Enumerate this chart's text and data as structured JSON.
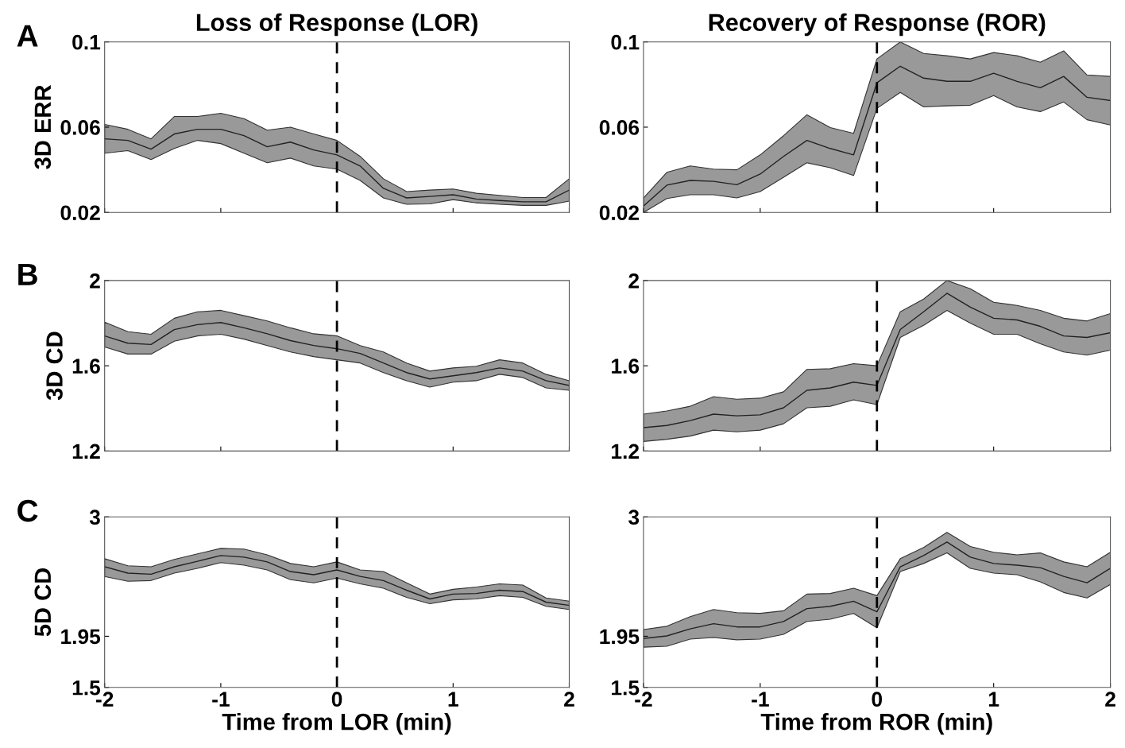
{
  "chart_data": [
    {
      "type": "line",
      "title": "Loss of Response (LOR)",
      "ylabel": "3D ERR",
      "annotations": [
        "A"
      ],
      "tick_labels": "y",
      "grid": false,
      "line_style": "solid",
      "x": [
        -2,
        -1.8,
        -1.6,
        -1.4,
        -1.2,
        -1,
        -0.8,
        -0.6,
        -0.4,
        -0.2,
        0,
        0.2,
        0.4,
        0.6,
        0.8,
        1,
        1.2,
        1.4,
        1.6,
        1.8,
        2
      ],
      "xlim": [
        -2,
        2
      ],
      "xticks": [
        -2,
        -1,
        0,
        1,
        2
      ],
      "ylim": [
        0.02,
        0.1
      ],
      "yticks": [
        0.02,
        0.06,
        0.1
      ],
      "ref_lines": [
        {
          "axis": "x",
          "value": 0,
          "color": "#000000",
          "line_style": "dashed"
        }
      ],
      "series": [
        {
          "color": "#222222",
          "values": [
            0.0545,
            0.0538,
            0.0497,
            0.0568,
            0.059,
            0.059,
            0.056,
            0.0508,
            0.053,
            0.0493,
            0.047,
            0.0418,
            0.0313,
            0.0268,
            0.0275,
            0.0283,
            0.0263,
            0.0256,
            0.025,
            0.025,
            0.0305
          ],
          "lower": [
            0.0478,
            0.049,
            0.0448,
            0.05,
            0.0538,
            0.0523,
            0.0478,
            0.0433,
            0.0455,
            0.0418,
            0.0403,
            0.035,
            0.0268,
            0.0238,
            0.024,
            0.026,
            0.0245,
            0.0238,
            0.0233,
            0.0233,
            0.0253
          ],
          "upper": [
            0.0613,
            0.059,
            0.0545,
            0.065,
            0.065,
            0.0665,
            0.064,
            0.0586,
            0.06,
            0.0568,
            0.0538,
            0.0463,
            0.0358,
            0.0298,
            0.0305,
            0.031,
            0.029,
            0.028,
            0.027,
            0.027,
            0.0358
          ]
        }
      ]
    },
    {
      "type": "line",
      "title": "Recovery of Response (ROR)",
      "tick_labels": "y",
      "grid": false,
      "line_style": "solid",
      "x": [
        -2,
        -1.8,
        -1.6,
        -1.4,
        -1.2,
        -1,
        -0.8,
        -0.6,
        -0.4,
        -0.2,
        0,
        0.2,
        0.4,
        0.6,
        0.8,
        1,
        1.2,
        1.4,
        1.6,
        1.8,
        2
      ],
      "xlim": [
        -2,
        2
      ],
      "xticks": [
        -2,
        -1,
        0,
        1,
        2
      ],
      "ylim": [
        0.02,
        0.1
      ],
      "yticks": [
        0.02,
        0.06,
        0.1
      ],
      "ref_lines": [
        {
          "axis": "x",
          "value": 0,
          "color": "#000000",
          "line_style": "dashed"
        }
      ],
      "series": [
        {
          "color": "#222222",
          "values": [
            0.023,
            0.0328,
            0.035,
            0.0346,
            0.033,
            0.038,
            0.0463,
            0.0538,
            0.05,
            0.047,
            0.0808,
            0.0886,
            0.083,
            0.0815,
            0.0815,
            0.0853,
            0.0815,
            0.0785,
            0.0838,
            0.074,
            0.0725
          ],
          "lower": [
            0.02,
            0.0265,
            0.0283,
            0.0283,
            0.0268,
            0.0298,
            0.0365,
            0.0433,
            0.041,
            0.0373,
            0.0688,
            0.0763,
            0.0695,
            0.07,
            0.0703,
            0.0748,
            0.0695,
            0.0673,
            0.0718,
            0.0635,
            0.061
          ],
          "upper": [
            0.0268,
            0.0388,
            0.0418,
            0.0403,
            0.04,
            0.047,
            0.056,
            0.0658,
            0.0598,
            0.0571,
            0.092,
            0.1,
            0.0946,
            0.0935,
            0.092,
            0.095,
            0.0935,
            0.0905,
            0.0958,
            0.0845,
            0.0838
          ]
        }
      ]
    },
    {
      "type": "line",
      "ylabel": "3D CD",
      "annotations": [
        "B"
      ],
      "tick_labels": "y",
      "grid": false,
      "line_style": "solid",
      "x": [
        -2,
        -1.8,
        -1.6,
        -1.4,
        -1.2,
        -1,
        -0.8,
        -0.6,
        -0.4,
        -0.2,
        0,
        0.2,
        0.4,
        0.6,
        0.8,
        1,
        1.2,
        1.4,
        1.6,
        1.8,
        2
      ],
      "xlim": [
        -2,
        2
      ],
      "xticks": [
        -2,
        -1,
        0,
        1,
        2
      ],
      "ylim": [
        1.2,
        2
      ],
      "yticks": [
        1.2,
        1.6,
        2
      ],
      "ref_lines": [
        {
          "axis": "x",
          "value": 0,
          "color": "#000000",
          "line_style": "dashed"
        }
      ],
      "series": [
        {
          "color": "#222222",
          "values": [
            1.74,
            1.706,
            1.7,
            1.77,
            1.793,
            1.803,
            1.778,
            1.75,
            1.718,
            1.695,
            1.68,
            1.658,
            1.613,
            1.568,
            1.538,
            1.553,
            1.568,
            1.59,
            1.575,
            1.53,
            1.508
          ],
          "lower": [
            1.688,
            1.655,
            1.655,
            1.715,
            1.74,
            1.748,
            1.725,
            1.695,
            1.665,
            1.643,
            1.628,
            1.613,
            1.568,
            1.53,
            1.5,
            1.523,
            1.53,
            1.56,
            1.545,
            1.496,
            1.485
          ],
          "upper": [
            1.805,
            1.76,
            1.748,
            1.823,
            1.853,
            1.86,
            1.835,
            1.81,
            1.778,
            1.75,
            1.74,
            1.695,
            1.665,
            1.613,
            1.575,
            1.59,
            1.598,
            1.628,
            1.613,
            1.56,
            1.53
          ]
        }
      ]
    },
    {
      "type": "line",
      "tick_labels": "y",
      "grid": false,
      "line_style": "solid",
      "x": [
        -2,
        -1.8,
        -1.6,
        -1.4,
        -1.2,
        -1,
        -0.8,
        -0.6,
        -0.4,
        -0.2,
        0,
        0.2,
        0.4,
        0.6,
        0.8,
        1,
        1.2,
        1.4,
        1.6,
        1.8,
        2
      ],
      "xlim": [
        -2,
        2
      ],
      "xticks": [
        -2,
        -1,
        0,
        1,
        2
      ],
      "ylim": [
        1.2,
        2
      ],
      "yticks": [
        1.2,
        1.6,
        2
      ],
      "ref_lines": [
        {
          "axis": "x",
          "value": 0,
          "color": "#000000",
          "line_style": "dashed"
        }
      ],
      "series": [
        {
          "color": "#222222",
          "values": [
            1.31,
            1.32,
            1.343,
            1.373,
            1.365,
            1.37,
            1.403,
            1.485,
            1.496,
            1.523,
            1.508,
            1.77,
            1.853,
            1.94,
            1.875,
            1.823,
            1.815,
            1.785,
            1.74,
            1.733,
            1.755
          ],
          "lower": [
            1.245,
            1.255,
            1.27,
            1.298,
            1.29,
            1.298,
            1.328,
            1.403,
            1.41,
            1.44,
            1.418,
            1.733,
            1.79,
            1.86,
            1.8,
            1.748,
            1.748,
            1.703,
            1.665,
            1.65,
            1.673
          ],
          "upper": [
            1.373,
            1.388,
            1.41,
            1.455,
            1.443,
            1.448,
            1.478,
            1.583,
            1.586,
            1.61,
            1.6,
            1.853,
            1.913,
            2.0,
            1.961,
            1.898,
            1.883,
            1.86,
            1.823,
            1.81,
            1.845
          ]
        }
      ]
    },
    {
      "type": "line",
      "ylabel": "5D CD",
      "xlabel": "Time from LOR (min)",
      "annotations": [
        "C"
      ],
      "grid": false,
      "line_style": "solid",
      "x": [
        -2,
        -1.8,
        -1.6,
        -1.4,
        -1.2,
        -1,
        -0.8,
        -0.6,
        -0.4,
        -0.2,
        0,
        0.2,
        0.4,
        0.6,
        0.8,
        1,
        1.2,
        1.4,
        1.6,
        1.8,
        2
      ],
      "xlim": [
        -2,
        2
      ],
      "xticks": [
        -2,
        -1,
        0,
        1,
        2
      ],
      "ylim": [
        1.5,
        3
      ],
      "yticks": [
        1.5,
        1.95,
        3
      ],
      "ref_lines": [
        {
          "axis": "x",
          "value": 0,
          "color": "#000000",
          "line_style": "dashed"
        }
      ],
      "series": [
        {
          "color": "#222222",
          "values": [
            2.561,
            2.505,
            2.496,
            2.561,
            2.609,
            2.66,
            2.646,
            2.604,
            2.519,
            2.491,
            2.533,
            2.476,
            2.44,
            2.355,
            2.278,
            2.321,
            2.326,
            2.355,
            2.343,
            2.25,
            2.222
          ],
          "lower": [
            2.476,
            2.434,
            2.44,
            2.505,
            2.547,
            2.598,
            2.575,
            2.533,
            2.448,
            2.42,
            2.462,
            2.411,
            2.372,
            2.292,
            2.236,
            2.27,
            2.278,
            2.307,
            2.292,
            2.213,
            2.185
          ],
          "upper": [
            2.632,
            2.57,
            2.561,
            2.626,
            2.675,
            2.723,
            2.717,
            2.666,
            2.59,
            2.561,
            2.604,
            2.533,
            2.519,
            2.42,
            2.321,
            2.363,
            2.383,
            2.411,
            2.4,
            2.287,
            2.259
          ]
        }
      ]
    },
    {
      "type": "line",
      "xlabel": "Time from ROR (min)",
      "grid": false,
      "line_style": "solid",
      "x": [
        -2,
        -1.8,
        -1.6,
        -1.4,
        -1.2,
        -1,
        -0.8,
        -0.6,
        -0.4,
        -0.2,
        0,
        0.2,
        0.4,
        0.6,
        0.8,
        1,
        1.2,
        1.4,
        1.6,
        1.8,
        2
      ],
      "xlim": [
        -2,
        2
      ],
      "xticks": [
        -2,
        -1,
        0,
        1,
        2
      ],
      "ylim": [
        1.5,
        3
      ],
      "yticks": [
        1.5,
        1.95,
        3
      ],
      "ref_lines": [
        {
          "axis": "x",
          "value": 0,
          "color": "#000000",
          "line_style": "dashed"
        }
      ],
      "series": [
        {
          "color": "#222222",
          "values": [
            1.93,
            1.953,
            2.015,
            2.06,
            2.032,
            2.032,
            2.08,
            2.193,
            2.213,
            2.258,
            2.165,
            2.561,
            2.66,
            2.779,
            2.646,
            2.59,
            2.575,
            2.553,
            2.476,
            2.42,
            2.547
          ],
          "lower": [
            1.854,
            1.862,
            1.925,
            1.939,
            1.919,
            1.925,
            1.967,
            2.08,
            2.1,
            2.151,
            2.024,
            2.519,
            2.59,
            2.683,
            2.547,
            2.505,
            2.491,
            2.428,
            2.335,
            2.287,
            2.406
          ],
          "upper": [
            2.009,
            2.038,
            2.123,
            2.185,
            2.157,
            2.151,
            2.174,
            2.321,
            2.326,
            2.372,
            2.307,
            2.632,
            2.731,
            2.864,
            2.74,
            2.689,
            2.666,
            2.683,
            2.604,
            2.561,
            2.689
          ]
        }
      ]
    }
  ]
}
